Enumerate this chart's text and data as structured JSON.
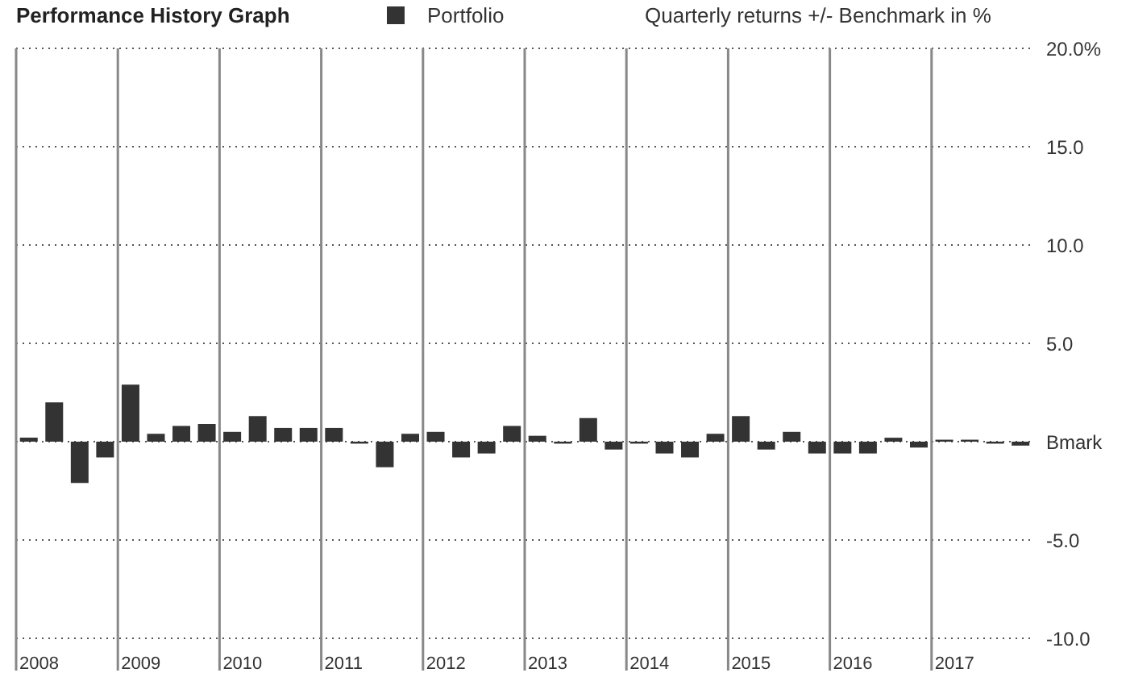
{
  "chart_data": {
    "type": "bar",
    "title": "Performance History Graph",
    "subtitle": "Quarterly returns +/- Benchmark in %",
    "categories": [
      "2008",
      null,
      null,
      null,
      "2009",
      null,
      null,
      null,
      "2010",
      null,
      null,
      null,
      "2011",
      null,
      null,
      null,
      "2012",
      null,
      null,
      null,
      "2013",
      null,
      null,
      null,
      "2014",
      null,
      null,
      null,
      "2015",
      null,
      null,
      null,
      "2016",
      null,
      null,
      null,
      "2017",
      null,
      null,
      null
    ],
    "series": [
      {
        "name": "Portfolio",
        "color": "#333333",
        "values": [
          0.2,
          2.0,
          -2.1,
          -0.8,
          2.9,
          0.4,
          0.8,
          0.9,
          0.5,
          1.3,
          0.7,
          0.7,
          0.7,
          -0.1,
          -1.3,
          0.4,
          0.5,
          -0.8,
          -0.6,
          0.8,
          0.3,
          -0.1,
          1.2,
          -0.4,
          -0.1,
          -0.6,
          -0.8,
          0.4,
          1.3,
          -0.4,
          0.5,
          -0.6,
          -0.6,
          -0.6,
          0.2,
          -0.3,
          0.1,
          0.1,
          -0.1,
          -0.2
        ]
      }
    ],
    "ylim": [
      -10,
      20
    ],
    "yticks": [
      {
        "value": 20,
        "label": "20.0%"
      },
      {
        "value": 15,
        "label": "15.0"
      },
      {
        "value": 10,
        "label": "10.0"
      },
      {
        "value": 5,
        "label": "5.0"
      },
      {
        "value": 0,
        "label": "Bmark"
      },
      {
        "value": -5,
        "label": "-5.0"
      },
      {
        "value": -10,
        "label": "-10.0"
      }
    ],
    "grid": true,
    "legend": "top"
  }
}
